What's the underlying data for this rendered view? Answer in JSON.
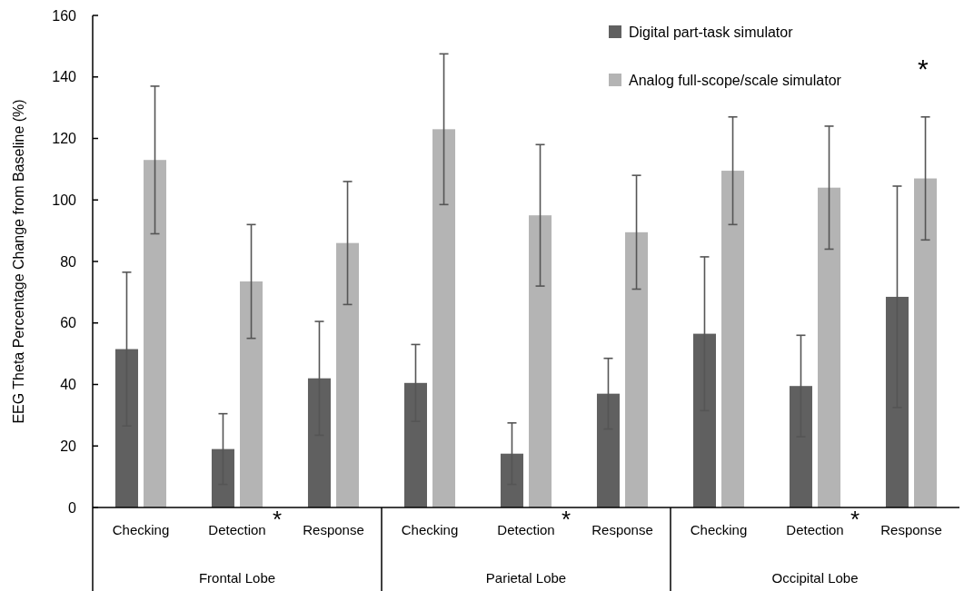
{
  "chart_data": {
    "type": "bar",
    "ylabel": "EEG Theta Percentage Change from Baseline (%)",
    "categories": [
      "Checking",
      "Detection",
      "Response",
      "Checking",
      "Detection",
      "Response",
      "Checking",
      "Detection",
      "Response"
    ],
    "series": [
      {
        "name": "Digital part-task simulator",
        "color": "#606060",
        "values": [
          51.5,
          19,
          42,
          40.5,
          17.5,
          37,
          56.5,
          39.5,
          68.5
        ],
        "errors": [
          25,
          11.5,
          18.5,
          12.5,
          10,
          11.5,
          25,
          16.5,
          36
        ]
      },
      {
        "name": "Analog full-scope/scale simulator",
        "color": "#b4b4b4",
        "values": [
          113,
          73.5,
          86,
          123,
          95,
          89.5,
          109.5,
          104,
          107
        ],
        "errors": [
          24,
          18.5,
          20,
          24.5,
          23,
          18.5,
          17.5,
          20,
          20
        ]
      }
    ],
    "ylim": [
      0,
      160
    ],
    "yticks": [
      0,
      20,
      40,
      60,
      80,
      100,
      120,
      140,
      160
    ],
    "legend": "top right",
    "annotations": [
      "Frontal Lobe",
      "Parietal Lobe",
      "Occipital Lobe",
      "*",
      "*",
      "*",
      "*"
    ]
  }
}
